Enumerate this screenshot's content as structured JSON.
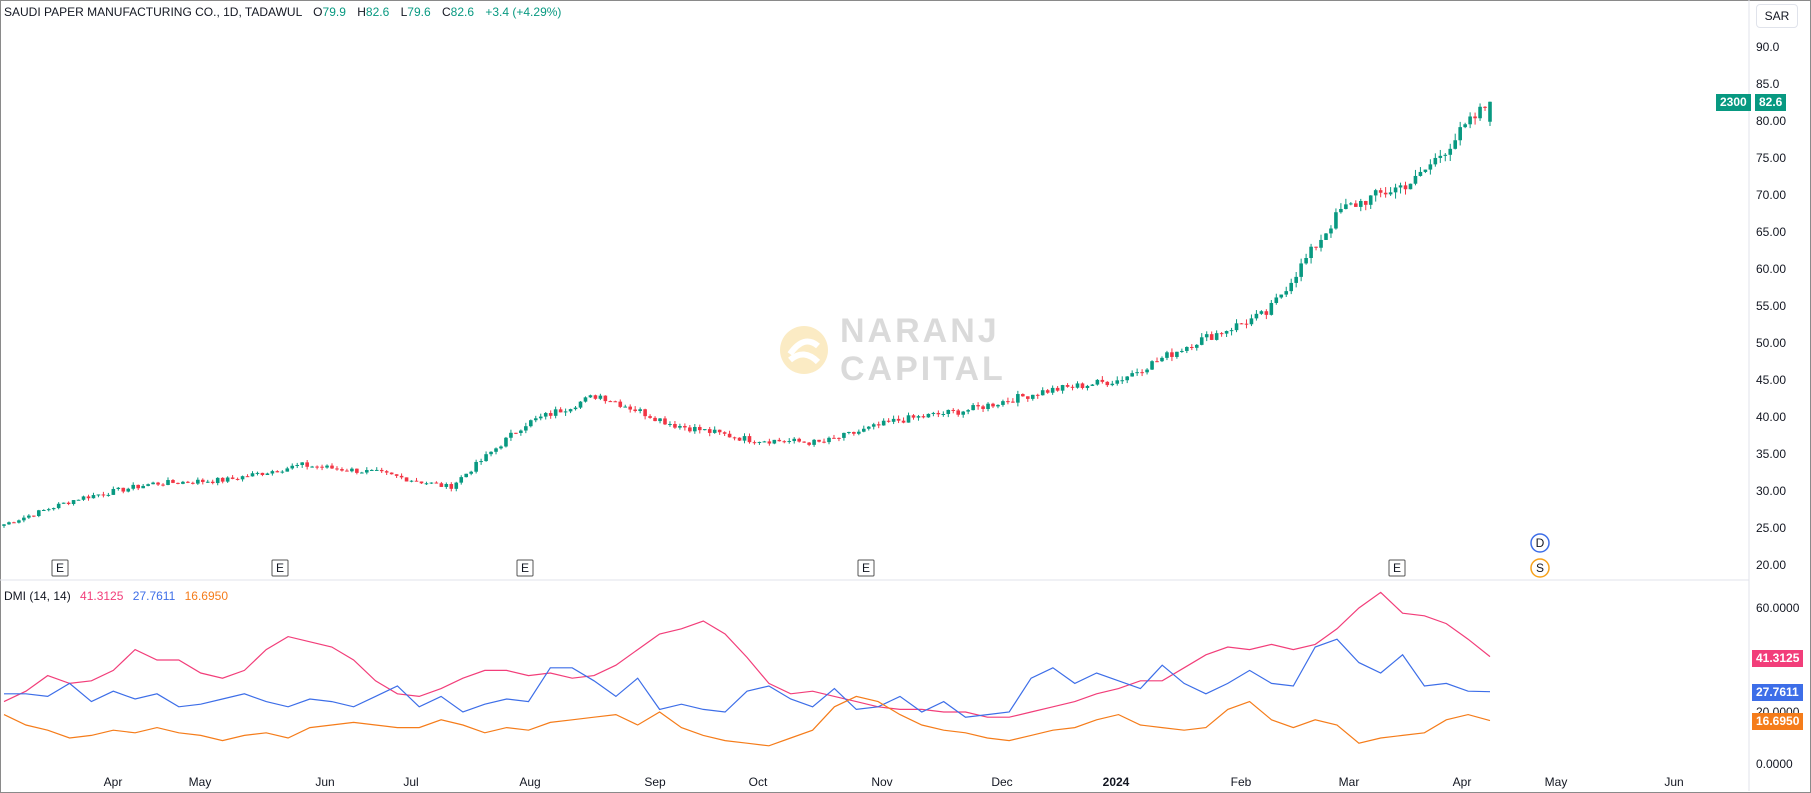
{
  "header": {
    "symbol": "SAUDI PAPER MANUFACTURING CO., 1D, TADAWUL",
    "o_label": "O",
    "o": "79.9",
    "h_label": "H",
    "h": "82.6",
    "l_label": "L",
    "l": "79.6",
    "c_label": "C",
    "c": "82.6",
    "change": "+3.4 (+4.29%)"
  },
  "currency": "SAR",
  "price_badge": {
    "volume": "2300",
    "price": "82.6",
    "color": "#089981"
  },
  "watermark": {
    "line1": "NARANJ",
    "line2": "CAPITAL"
  },
  "markers": {
    "earnings_label": "E",
    "d_label": "D",
    "s_label": "S"
  },
  "dmi": {
    "label": "DMI (14, 14)",
    "plus_di": "41.3125",
    "minus_di": "27.7611",
    "adx": "16.6950",
    "plus_di_color": "#f23e7a",
    "minus_di_color": "#3d6ee8",
    "adx_color": "#f57c1a"
  },
  "chart_data": [
    {
      "type": "candlestick",
      "title": "SAUDI PAPER MANUFACTURING CO., 1D, TADAWUL",
      "y_ticks": [
        "20.00",
        "25.00",
        "30.00",
        "35.00",
        "40.00",
        "45.00",
        "50.00",
        "55.00",
        "60.00",
        "65.00",
        "70.00",
        "75.00",
        "80.00",
        "85.0",
        "90.0"
      ],
      "ylim": [
        20,
        90
      ],
      "x_ticks": [
        "Apr",
        "May",
        "Jun",
        "Jul",
        "Aug",
        "Sep",
        "Oct",
        "Nov",
        "Dec",
        "2024",
        "Feb",
        "Mar",
        "Apr",
        "May",
        "Jun"
      ],
      "up_color": "#089981",
      "down_color": "#f23645",
      "series": [
        {
          "name": "price",
          "x": [
            "Mar 2023",
            "Apr 2023",
            "May 2023",
            "Jun 2023",
            "Jul 2023",
            "Aug 2023",
            "Aug 2023 (late)",
            "Sep 2023",
            "Sep 2023 (mid)",
            "Oct 2023",
            "Oct 2023 (late)",
            "Nov 2023",
            "Dec 2023",
            "Dec 2023 (mid)",
            "2024",
            "Jan 2024 (mid)",
            "Feb 2024",
            "Feb 2024 (late)",
            "Mar 2024",
            "Mar 2024 (mid)",
            "Apr 2024"
          ],
          "values": [
            25.5,
            29.0,
            31.0,
            31.5,
            33.5,
            32.5,
            30.5,
            39.0,
            43.0,
            39.0,
            37.0,
            36.5,
            39.5,
            41.0,
            43.5,
            45.0,
            50.0,
            54.0,
            68.0,
            72.0,
            82.6
          ]
        }
      ],
      "last": {
        "open": 79.9,
        "high": 82.6,
        "low": 79.6,
        "close": 82.6,
        "change": 3.4,
        "change_pct": 4.29,
        "volume": 2300
      }
    },
    {
      "type": "line",
      "title": "DMI (14, 14)",
      "y_ticks": [
        "0.0000",
        "20.0000",
        "60.0000"
      ],
      "ylim": [
        0,
        70
      ],
      "series": [
        {
          "name": "+DI",
          "values": [
            24,
            28,
            34,
            31,
            32,
            36,
            44,
            40,
            40,
            35,
            33,
            36,
            44,
            49,
            47,
            45,
            40,
            32,
            27,
            26,
            29,
            33,
            36,
            36,
            34,
            35,
            33,
            34,
            38,
            44,
            50,
            52,
            55,
            50,
            41,
            31,
            27,
            28,
            26,
            24,
            22,
            21,
            21,
            20,
            20,
            18,
            18,
            20,
            22,
            24,
            27,
            29,
            32,
            32,
            37,
            42,
            45,
            44,
            46,
            44,
            46,
            52,
            60,
            66,
            58,
            57,
            54,
            48,
            41.3
          ]
        },
        {
          "name": "-DI",
          "values": [
            27,
            27,
            26,
            31,
            24,
            28,
            25,
            27,
            22,
            23,
            25,
            27,
            24,
            22,
            25,
            24,
            22,
            26,
            30,
            22,
            26,
            20,
            23,
            25,
            24,
            37,
            37,
            32,
            26,
            33,
            21,
            23,
            21,
            20,
            28,
            30,
            25,
            22,
            29,
            21,
            22,
            26,
            20,
            24,
            18,
            19,
            20,
            33,
            37,
            31,
            35,
            32,
            29,
            38,
            31,
            27,
            31,
            36,
            31,
            30,
            45,
            48,
            39,
            35,
            42,
            30,
            31,
            28,
            27.8
          ]
        },
        {
          "name": "ADX",
          "values": [
            19,
            15,
            13,
            10,
            11,
            13,
            12,
            14,
            12,
            11,
            9,
            11,
            12,
            10,
            14,
            15,
            16,
            15,
            14,
            14,
            17,
            15,
            12,
            14,
            13,
            16,
            17,
            18,
            19,
            15,
            20,
            14,
            11,
            9,
            8,
            7,
            10,
            13,
            22,
            26,
            24,
            19,
            15,
            13,
            12,
            10,
            9,
            11,
            13,
            14,
            17,
            19,
            15,
            14,
            13,
            14,
            21,
            24,
            17,
            14,
            17,
            15,
            8,
            10,
            11,
            12,
            17,
            19,
            16.7
          ]
        }
      ]
    }
  ]
}
